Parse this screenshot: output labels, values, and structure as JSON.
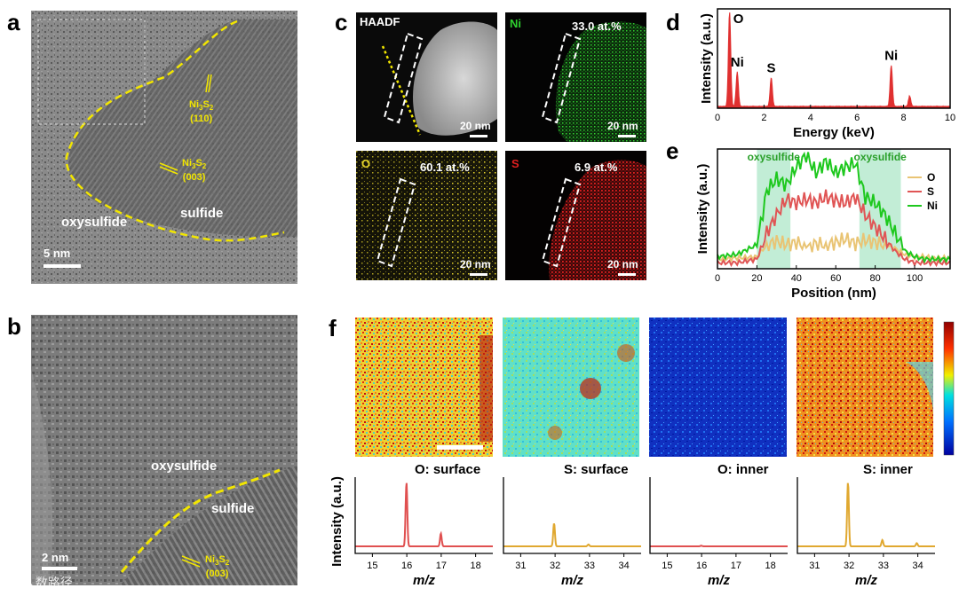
{
  "panels": {
    "a": {
      "label": "a",
      "labels": {
        "oxysulfide": "oxysulfide",
        "sulfide": "sulfide",
        "scale": "5 nm"
      },
      "lattice": [
        {
          "compound_top": "Ni",
          "sub1": "3",
          "mid": "S",
          "sub2": "2",
          "plane": "(110)"
        },
        {
          "compound_top": "Ni",
          "sub1": "3",
          "mid": "S",
          "sub2": "2",
          "plane": "(003)"
        }
      ]
    },
    "b": {
      "label": "b",
      "labels": {
        "oxysulfide": "oxysulfide",
        "sulfide": "sulfide",
        "scale": "2 nm"
      },
      "lattice": {
        "compound_top": "Ni",
        "sub1": "3",
        "mid": "S",
        "sub2": "2",
        "plane": "(003)"
      }
    },
    "c": {
      "label": "c",
      "maps": [
        {
          "title": "HAADF",
          "fraction": "",
          "scale": "20 nm",
          "color": "#ffffff"
        },
        {
          "title": "Ni",
          "fraction": "33.0 at.%",
          "scale": "20 nm",
          "color": "#2fd12f"
        },
        {
          "title": "O",
          "fraction": "60.1 at.%",
          "scale": "20 nm",
          "color": "#e3d22a"
        },
        {
          "title": "S",
          "fraction": "6.9 at.%",
          "scale": "20 nm",
          "color": "#e02020"
        }
      ]
    },
    "d": {
      "label": "d"
    },
    "e": {
      "label": "e",
      "region_label": "oxysulfide"
    },
    "f": {
      "label": "f",
      "maps": [
        {
          "title": "O: surface"
        },
        {
          "title": "S: surface"
        },
        {
          "title": "O: inner"
        },
        {
          "title": "S: inner"
        }
      ]
    }
  },
  "watermark": "ⓒ 人数路径",
  "chart_data": [
    {
      "id": "d",
      "type": "line",
      "title": "",
      "xlabel": "Energy (keV)",
      "ylabel": "Intensity (a.u.)",
      "xlim": [
        0,
        10
      ],
      "xticks": [
        0,
        2,
        4,
        6,
        8,
        10
      ],
      "color": "#e03030",
      "peaks": [
        {
          "x": 0.52,
          "height": 1.0,
          "label": "O"
        },
        {
          "x": 0.85,
          "height": 0.36,
          "label": "Ni"
        },
        {
          "x": 2.31,
          "height": 0.3,
          "label": "S"
        },
        {
          "x": 7.47,
          "height": 0.43,
          "label": "Ni"
        },
        {
          "x": 8.26,
          "height": 0.11,
          "label": ""
        }
      ]
    },
    {
      "id": "e",
      "type": "line",
      "xlabel": "Position (nm)",
      "ylabel": "Intensity (a.u.)",
      "xlim": [
        0,
        118
      ],
      "ylim": [
        0,
        1
      ],
      "xticks": [
        0,
        20,
        40,
        60,
        80,
        100
      ],
      "shaded_regions": [
        [
          20,
          37
        ],
        [
          72,
          93
        ]
      ],
      "legend": [
        "O",
        "S",
        "Ni"
      ],
      "series": [
        {
          "name": "O",
          "color": "#e9c474",
          "x": [
            0,
            10,
            20,
            25,
            30,
            35,
            40,
            45,
            50,
            55,
            60,
            65,
            70,
            75,
            80,
            85,
            90,
            95,
            100,
            105,
            110,
            115
          ],
          "values": [
            0.08,
            0.09,
            0.1,
            0.2,
            0.23,
            0.2,
            0.22,
            0.19,
            0.21,
            0.2,
            0.22,
            0.25,
            0.21,
            0.24,
            0.22,
            0.2,
            0.17,
            0.12,
            0.1,
            0.1,
            0.09,
            0.09
          ]
        },
        {
          "name": "S",
          "color": "#e05555",
          "x": [
            0,
            10,
            20,
            25,
            30,
            35,
            40,
            45,
            50,
            55,
            60,
            65,
            70,
            75,
            80,
            85,
            90,
            95,
            100,
            105,
            110,
            115
          ],
          "values": [
            0.05,
            0.05,
            0.08,
            0.3,
            0.45,
            0.58,
            0.55,
            0.58,
            0.55,
            0.6,
            0.57,
            0.55,
            0.6,
            0.45,
            0.35,
            0.25,
            0.15,
            0.08,
            0.05,
            0.05,
            0.05,
            0.05
          ]
        },
        {
          "name": "Ni",
          "color": "#1ec81e",
          "x": [
            0,
            10,
            20,
            25,
            30,
            35,
            40,
            45,
            50,
            55,
            60,
            65,
            70,
            75,
            80,
            85,
            90,
            95,
            100,
            105,
            110,
            115
          ],
          "values": [
            0.1,
            0.12,
            0.2,
            0.65,
            0.75,
            0.7,
            0.85,
            0.95,
            0.8,
            0.9,
            0.8,
            0.85,
            0.88,
            0.6,
            0.55,
            0.45,
            0.3,
            0.15,
            0.1,
            0.08,
            0.08,
            0.08
          ]
        }
      ]
    },
    {
      "id": "f-spectra",
      "type": "line",
      "ylabel": "Intensity (a.u.)",
      "xlabel": "m/z",
      "panels": [
        {
          "xlim": [
            14.5,
            18.5
          ],
          "xticks": [
            15,
            16,
            17,
            18
          ],
          "color": "#e05050",
          "peaks": [
            {
              "x": 15.99,
              "height": 1.0
            },
            {
              "x": 16.99,
              "height": 0.2
            }
          ]
        },
        {
          "xlim": [
            30.5,
            34.5
          ],
          "xticks": [
            31,
            32,
            33,
            34
          ],
          "color": "#e0a830",
          "peaks": [
            {
              "x": 31.97,
              "height": 0.36
            },
            {
              "x": 32.97,
              "height": 0.03
            }
          ]
        },
        {
          "xlim": [
            14.5,
            18.5
          ],
          "xticks": [
            15,
            16,
            17,
            18
          ],
          "color": "#e05050",
          "peaks": [
            {
              "x": 15.99,
              "height": 0.01
            }
          ]
        },
        {
          "xlim": [
            30.5,
            34.5
          ],
          "xticks": [
            31,
            32,
            33,
            34
          ],
          "color": "#e0a830",
          "peaks": [
            {
              "x": 31.97,
              "height": 1.0
            },
            {
              "x": 32.97,
              "height": 0.1
            },
            {
              "x": 33.97,
              "height": 0.05
            }
          ]
        }
      ],
      "colorbar": [
        "#0000a0",
        "#00d0ff",
        "#f0f000",
        "#ff3000",
        "#900000"
      ]
    }
  ]
}
